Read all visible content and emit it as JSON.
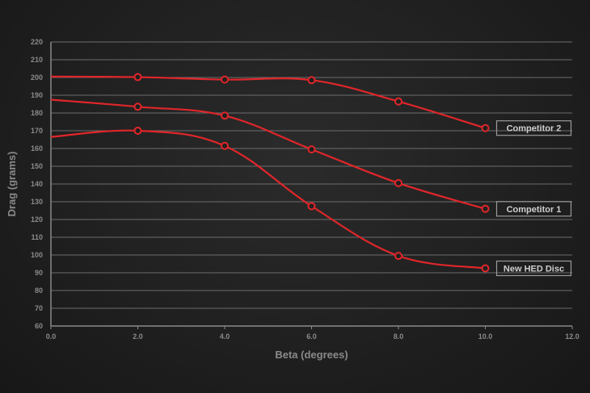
{
  "chart_data": {
    "type": "line",
    "xlabel": "Beta (degrees)",
    "ylabel": "Drag (grams)",
    "xlim": [
      0,
      12
    ],
    "ylim": [
      60,
      220
    ],
    "x_ticks": [
      "0.0",
      "2.0",
      "4.0",
      "6.0",
      "8.0",
      "10.0",
      "12.0"
    ],
    "y_ticks": [
      "60",
      "70",
      "80",
      "90",
      "100",
      "110",
      "120",
      "130",
      "140",
      "150",
      "160",
      "170",
      "180",
      "190",
      "200",
      "210",
      "220"
    ],
    "grid": true,
    "legend": "inline labels at line ends",
    "series": [
      {
        "name": "Competitor 2",
        "color": "#e0262a",
        "x": [
          0.0,
          2.0,
          4.0,
          6.0,
          8.0,
          10.0
        ],
        "y": [
          200.5,
          200.2,
          198.8,
          198.5,
          186.5,
          171.5
        ],
        "marker_x": [
          2.0,
          4.0,
          6.0,
          8.0,
          10.0
        ]
      },
      {
        "name": "Competitor 1",
        "color": "#e0262a",
        "x": [
          0.0,
          2.0,
          4.0,
          6.0,
          8.0,
          10.0
        ],
        "y": [
          187.5,
          183.5,
          178.5,
          159.5,
          140.5,
          126.0
        ],
        "marker_x": [
          2.0,
          4.0,
          6.0,
          8.0,
          10.0
        ]
      },
      {
        "name": "New HED Disc",
        "color": "#e0262a",
        "x": [
          0.0,
          2.0,
          4.0,
          6.0,
          8.0,
          10.0
        ],
        "y": [
          166.5,
          170.0,
          161.5,
          127.5,
          99.5,
          92.5
        ],
        "marker_x": [
          2.0,
          4.0,
          6.0,
          8.0,
          10.0
        ]
      }
    ]
  }
}
